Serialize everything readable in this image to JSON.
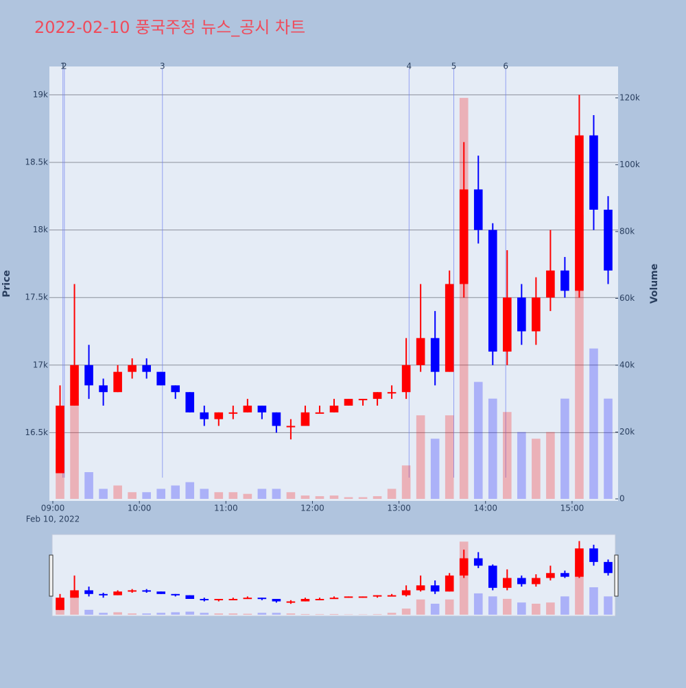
{
  "chart_data": {
    "type": "candlestick",
    "title": "2022-02-10 풍국주정 뉴스_공시 차트",
    "y_label": "Price",
    "y2_label": "Volume",
    "x_date_label": "Feb 10, 2022",
    "up_color": "#ff0000",
    "down_color": "#0000ff",
    "x": [
      "09:00",
      "09:10",
      "09:20",
      "09:30",
      "09:40",
      "09:50",
      "10:00",
      "10:10",
      "10:20",
      "10:30",
      "10:40",
      "10:50",
      "11:00",
      "11:10",
      "11:20",
      "11:30",
      "11:40",
      "11:50",
      "12:00",
      "12:10",
      "12:20",
      "12:30",
      "12:40",
      "12:50",
      "13:00",
      "13:10",
      "13:20",
      "13:30",
      "13:40",
      "13:50",
      "14:00",
      "14:10",
      "14:20",
      "14:30",
      "14:40",
      "14:50",
      "15:00",
      "15:10",
      "15:20"
    ],
    "open": [
      16200,
      16700,
      17000,
      16850,
      16800,
      16950,
      17000,
      16950,
      16850,
      16800,
      16650,
      16600,
      16650,
      16650,
      16700,
      16650,
      16550,
      16550,
      16650,
      16650,
      16700,
      16750,
      16750,
      16800,
      16800,
      17000,
      17200,
      16950,
      17600,
      18300,
      18000,
      17100,
      17500,
      17250,
      17500,
      17700,
      17550,
      18700,
      18150
    ],
    "high": [
      16850,
      17600,
      17150,
      16900,
      17000,
      17050,
      17050,
      16950,
      16850,
      16800,
      16700,
      16650,
      16700,
      16750,
      16700,
      16650,
      16600,
      16700,
      16700,
      16750,
      16750,
      16750,
      16800,
      16850,
      17200,
      17600,
      17400,
      17700,
      18650,
      18550,
      18050,
      17850,
      17600,
      17650,
      18000,
      17800,
      19000,
      18850,
      18250
    ],
    "low": [
      16200,
      16700,
      16750,
      16700,
      16800,
      16900,
      16900,
      16850,
      16750,
      16650,
      16550,
      16550,
      16600,
      16650,
      16600,
      16500,
      16450,
      16550,
      16650,
      16650,
      16700,
      16700,
      16700,
      16750,
      16750,
      16950,
      16850,
      16950,
      17500,
      17900,
      17000,
      17000,
      17150,
      17150,
      17400,
      17500,
      17500,
      18000,
      17600
    ],
    "close": [
      16700,
      17000,
      16850,
      16800,
      16950,
      17000,
      16950,
      16850,
      16800,
      16650,
      16600,
      16650,
      16650,
      16700,
      16650,
      16550,
      16550,
      16650,
      16650,
      16700,
      16750,
      16750,
      16800,
      16800,
      17000,
      17200,
      16950,
      17600,
      18300,
      18000,
      17100,
      17500,
      17250,
      17500,
      17700,
      17550,
      18700,
      18150,
      17700
    ],
    "volume": [
      15000,
      30000,
      8000,
      3000,
      4000,
      2000,
      2000,
      3000,
      4000,
      5000,
      3000,
      2000,
      2000,
      1500,
      3000,
      3000,
      2000,
      1000,
      800,
      1000,
      500,
      500,
      800,
      3000,
      10000,
      25000,
      18000,
      25000,
      120000,
      35000,
      30000,
      26000,
      20000,
      18000,
      20000,
      30000,
      85000,
      45000,
      30000
    ],
    "events": [
      {
        "label": "1",
        "time": "09:07"
      },
      {
        "label": "2",
        "time": "09:08"
      },
      {
        "label": "3",
        "time": "10:16"
      },
      {
        "label": "4",
        "time": "13:07"
      },
      {
        "label": "5",
        "time": "13:38"
      },
      {
        "label": "6",
        "time": "14:14"
      }
    ],
    "xlim": [
      "09:00",
      "15:30"
    ],
    "xticks": [
      "09:00",
      "10:00",
      "11:00",
      "12:00",
      "13:00",
      "14:00",
      "15:00"
    ],
    "ylim": [
      16010,
      19210
    ],
    "yticks": [
      {
        "value": 16500,
        "label": "16.5k"
      },
      {
        "value": 17000,
        "label": "17k"
      },
      {
        "value": 17500,
        "label": "17.5k"
      },
      {
        "value": 18000,
        "label": "18k"
      },
      {
        "value": 18500,
        "label": "18.5k"
      },
      {
        "value": 19000,
        "label": "19k"
      }
    ],
    "y2lim": [
      0,
      129400
    ],
    "y2ticks": [
      0,
      {
        "value": 20000,
        "label": "20k"
      },
      {
        "value": 40000,
        "label": "40k"
      },
      {
        "value": 60000,
        "label": "60k"
      },
      {
        "value": 80000,
        "label": "80k"
      },
      {
        "value": 100000,
        "label": "100k"
      },
      {
        "value": 120000,
        "label": "120k"
      }
    ],
    "grid": true
  }
}
